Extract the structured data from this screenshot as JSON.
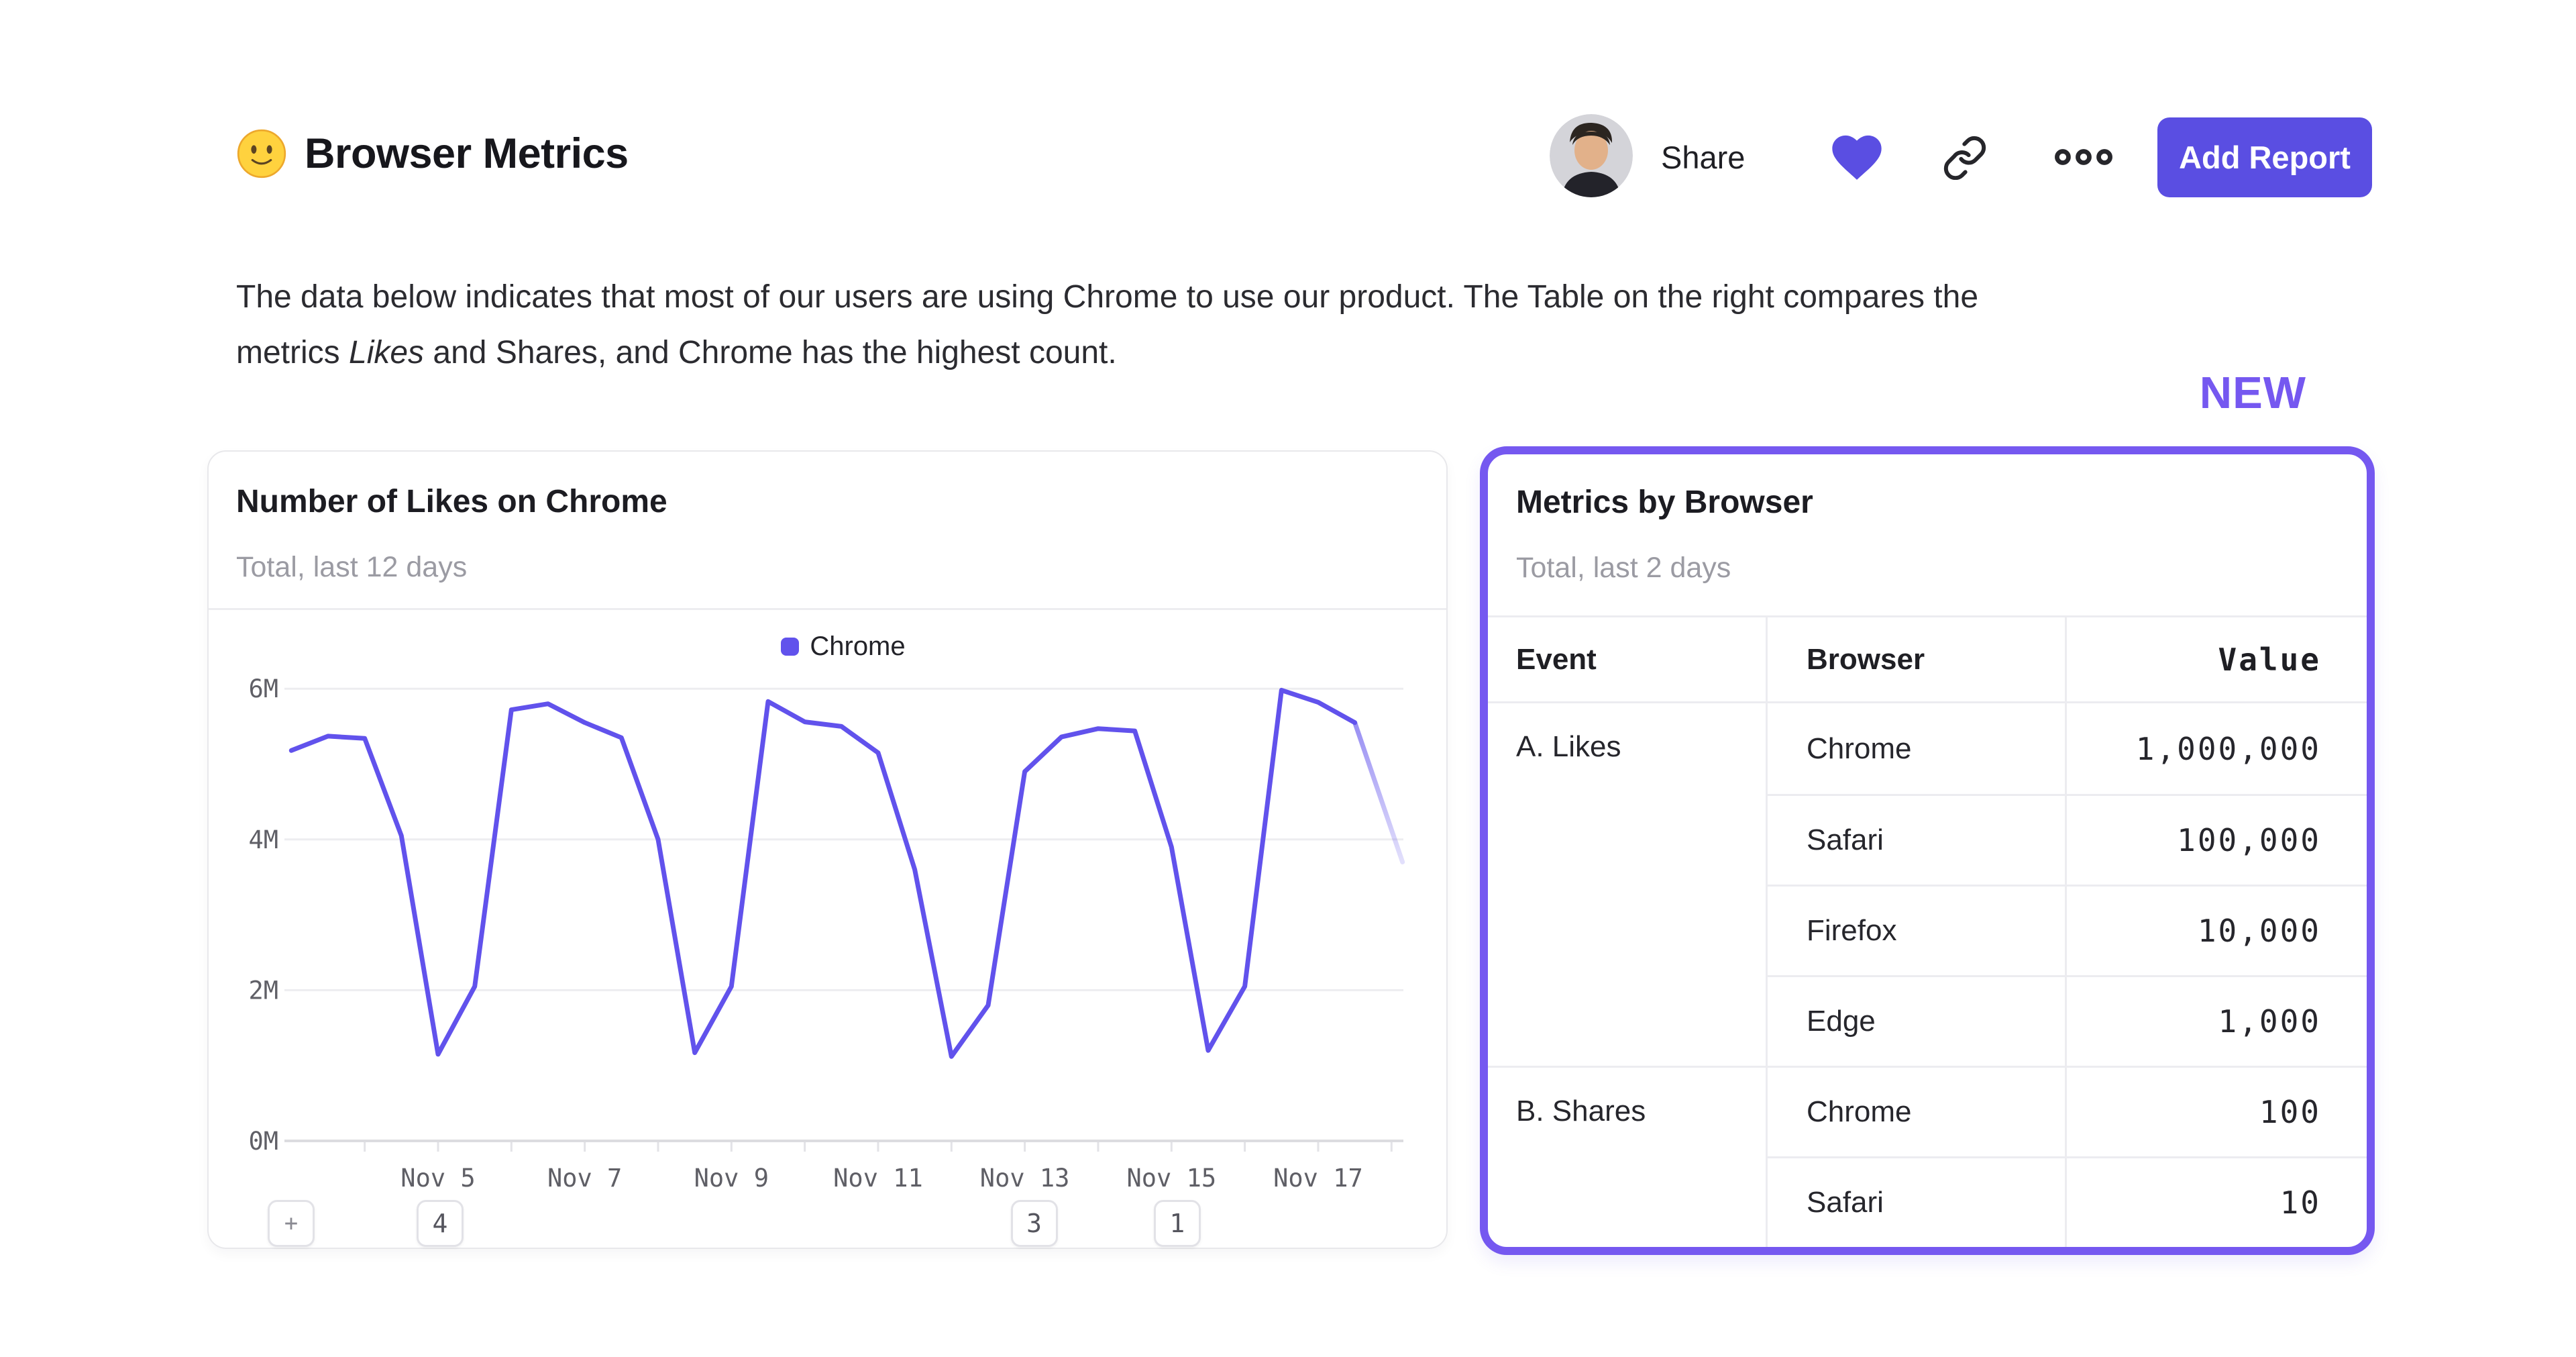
{
  "colors": {
    "accent": "#5a4ee2",
    "accent_light": "#7558f0",
    "line": "#6152ec",
    "text_dark": "#17171c",
    "text_gray": "#9b9ba3",
    "axis_gray": "#5f5f66",
    "gridline": "#ededf0",
    "baseline": "#dcdce0"
  },
  "header": {
    "emoji": "slightly-smiling-face",
    "title": "Browser Metrics",
    "share_label": "Share",
    "add_report_label": "Add Report"
  },
  "description": {
    "line1": "The data below indicates that most of our users are using Chrome to use our product. The Table on the right compares the",
    "line2_prefix": "metrics ",
    "line2_italic": "Likes",
    "line2_suffix": " and Shares, and Chrome has the highest count."
  },
  "new_badge": "NEW",
  "chart_card": {
    "title": "Number of Likes on Chrome",
    "subtitle": "Total, last 12 days",
    "legend_label": "Chrome",
    "annotations": [
      {
        "label": "+",
        "day": null
      },
      {
        "label": "4",
        "day": 5
      },
      {
        "label": "3",
        "day": 13.1
      },
      {
        "label": "1",
        "day": 15.05
      }
    ]
  },
  "chart_data": {
    "type": "line",
    "title": "Number of Likes on Chrome",
    "subtitle": "Total, last 12 days",
    "unit": "millions of likes",
    "ylim": [
      0,
      6
    ],
    "grid": true,
    "legend_position": "top-center",
    "y_ticks": [
      {
        "value": 0,
        "label": "0M"
      },
      {
        "value": 2,
        "label": "2M"
      },
      {
        "value": 4,
        "label": "4M"
      },
      {
        "value": 6,
        "label": "6M"
      }
    ],
    "x_ticks": [
      {
        "day": 5,
        "label": "Nov 5"
      },
      {
        "day": 7,
        "label": "Nov 7"
      },
      {
        "day": 9,
        "label": "Nov 9"
      },
      {
        "day": 11,
        "label": "Nov 11"
      },
      {
        "day": 13,
        "label": "Nov 13"
      },
      {
        "day": 15,
        "label": "Nov 15"
      },
      {
        "day": 17,
        "label": "Nov 17"
      }
    ],
    "x_minor_tick_days": [
      4,
      5,
      6,
      7,
      8,
      9,
      10,
      11,
      12,
      13,
      14,
      15,
      16,
      17,
      18
    ],
    "series": [
      {
        "name": "Chrome",
        "color": "#6152ec",
        "x_days": [
          3,
          3.5,
          4,
          4.5,
          5,
          5.5,
          6,
          6.5,
          7,
          7.5,
          8,
          8.5,
          9,
          9.5,
          10,
          10.5,
          11,
          11.5,
          12,
          12.5,
          13,
          13.5,
          14,
          14.5,
          15,
          15.5,
          16,
          16.5,
          17,
          17.5
        ],
        "values_millions": [
          5.18,
          5.37,
          5.34,
          4.05,
          1.15,
          2.05,
          5.72,
          5.8,
          5.55,
          5.35,
          4.0,
          1.17,
          2.05,
          5.83,
          5.56,
          5.5,
          5.15,
          3.6,
          1.12,
          1.8,
          4.9,
          5.36,
          5.47,
          5.44,
          3.9,
          1.2,
          2.05,
          5.98,
          5.82,
          5.55
        ]
      }
    ],
    "incomplete_tail": {
      "x_day": 18.15,
      "value_millions": 3.7
    }
  },
  "table_card": {
    "title": "Metrics by Browser",
    "subtitle": "Total, last 2 days",
    "columns": [
      "Event",
      "Browser",
      "Value"
    ],
    "groups": [
      {
        "event": "A. Likes",
        "rows": [
          {
            "browser": "Chrome",
            "value": "1,000,000"
          },
          {
            "browser": "Safari",
            "value": "100,000"
          },
          {
            "browser": "Firefox",
            "value": "10,000"
          },
          {
            "browser": "Edge",
            "value": "1,000"
          }
        ]
      },
      {
        "event": "B. Shares",
        "rows": [
          {
            "browser": "Chrome",
            "value": "100"
          },
          {
            "browser": "Safari",
            "value": "10"
          }
        ]
      }
    ]
  }
}
